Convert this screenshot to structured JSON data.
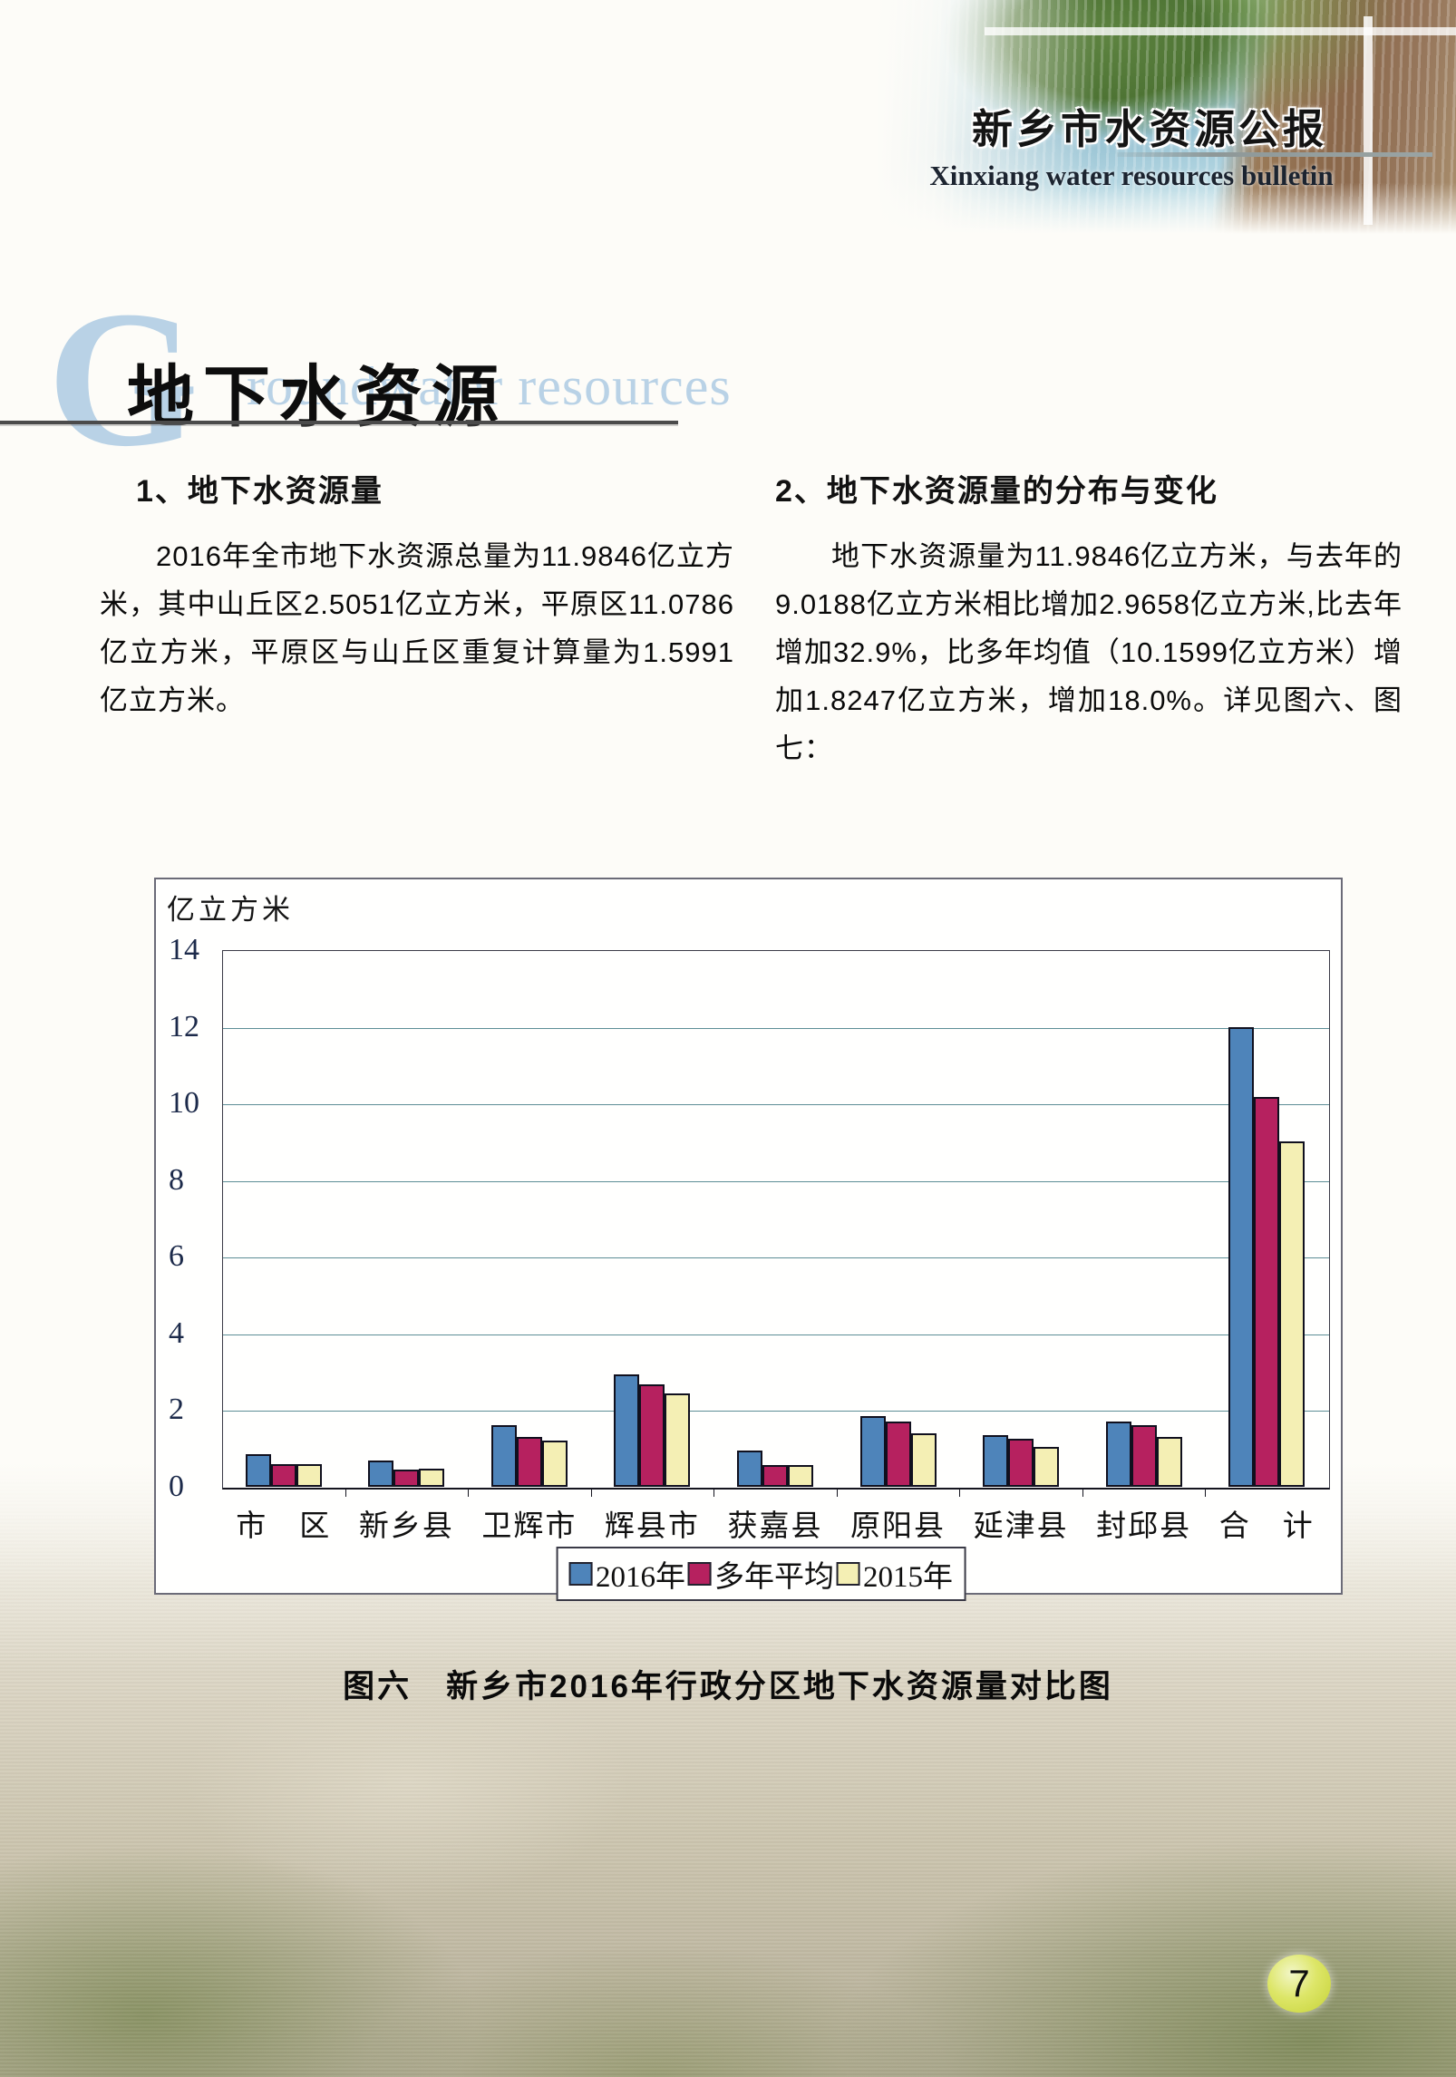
{
  "header": {
    "title_cn": "新乡市水资源公报",
    "title_en": "Xinxiang water resources bulletin"
  },
  "section": {
    "big_letter": "G",
    "watermark_rest": "roundwater resources",
    "title": "地下水资源"
  },
  "columns": {
    "left": {
      "heading": "1、地下水资源量",
      "paragraph": "2016年全市地下水资源总量为11.9846亿立方米，其中山丘区2.5051亿立方米，平原区11.0786亿立方米，平原区与山丘区重复计算量为1.5991亿立方米。"
    },
    "right": {
      "heading": "2、地下水资源量的分布与变化",
      "paragraph": "地下水资源量为11.9846亿立方米，与去年的9.0188亿立方米相比增加2.9658亿立方米,比去年增加32.9%，比多年均值（10.1599亿立方米）增加1.8247亿立方米，增加18.0%。详见图六、图七："
    }
  },
  "chart_data": {
    "type": "bar",
    "title": "图六　新乡市2016年行政分区地下水资源量对比图",
    "unit_label": "亿立方米",
    "categories": [
      "市　区",
      "新乡县",
      "卫辉市",
      "辉县市",
      "获嘉县",
      "原阳县",
      "延津县",
      "封邱县",
      "合　计"
    ],
    "series": [
      {
        "name": "2016年",
        "color": "#4e84ba",
        "values": [
          0.85,
          0.68,
          1.6,
          2.93,
          0.95,
          1.85,
          1.35,
          1.7,
          11.98
        ]
      },
      {
        "name": "多年平均",
        "color": "#b6215f",
        "values": [
          0.58,
          0.46,
          1.3,
          2.68,
          0.56,
          1.7,
          1.25,
          1.6,
          10.16
        ]
      },
      {
        "name": "2015年",
        "color": "#f4efb4",
        "values": [
          0.58,
          0.48,
          1.21,
          2.43,
          0.57,
          1.4,
          1.05,
          1.3,
          9.02
        ]
      }
    ],
    "ylim": [
      0,
      14
    ],
    "ytick_step": 2,
    "grid": true,
    "legend_position": "bottom"
  },
  "caption": "图六　新乡市2016年行政分区地下水资源量对比图",
  "page_number": "7"
}
